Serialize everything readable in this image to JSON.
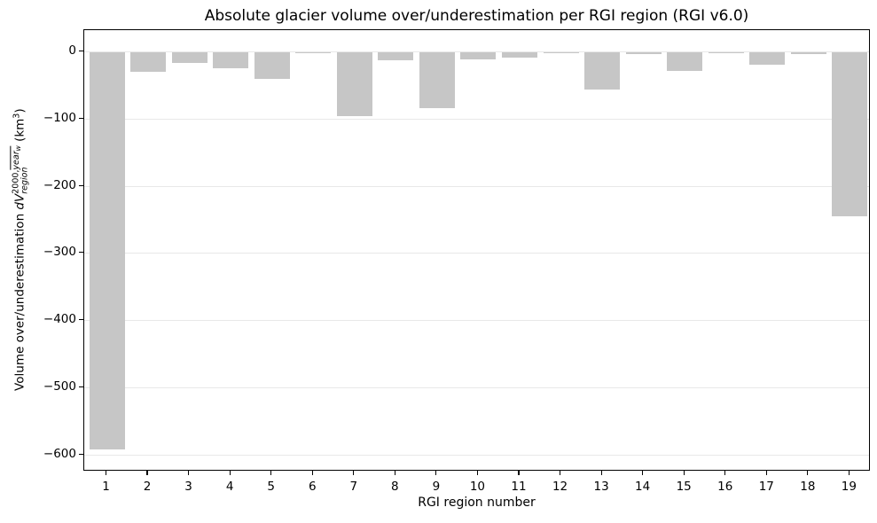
{
  "chart_data": {
    "type": "bar",
    "title": "Absolute glacier volume over/underestimation per RGI region (RGI v6.0)",
    "xlabel": "RGI region number",
    "ylabel_plain": "Volume over/underestimation dV^(2000,year_w)_(region) (km3)",
    "ylabel_parts": {
      "prefix": "Volume over/underestimation ",
      "var": "dV",
      "sup_left": "2000,",
      "sup_overline": "year",
      "sup_sub": "w",
      "sub": "region",
      "suffix_open": " (km",
      "suffix_sup": "3",
      "suffix_close": ")"
    },
    "categories": [
      1,
      2,
      3,
      4,
      5,
      6,
      7,
      8,
      9,
      10,
      11,
      12,
      13,
      14,
      15,
      16,
      17,
      18,
      19
    ],
    "values": [
      -592,
      -30,
      -17,
      -25,
      -40,
      -0.5,
      -96,
      -12,
      -84,
      -11,
      -9,
      -2,
      -56,
      -3.5,
      -29,
      -2.5,
      -19,
      -3.5,
      -245
    ],
    "yticks": [
      {
        "value": 0,
        "label": "0"
      },
      {
        "value": -100,
        "label": "−100"
      },
      {
        "value": -200,
        "label": "−200"
      },
      {
        "value": -300,
        "label": "−300"
      },
      {
        "value": -400,
        "label": "−400"
      },
      {
        "value": -500,
        "label": "−500"
      },
      {
        "value": -600,
        "label": "−600"
      }
    ],
    "ylim": [
      -627,
      33
    ],
    "grid": true,
    "legend": "none",
    "bar_color": "#c6c6c6",
    "grid_color": "#e8e8e8",
    "axis_color": "#000000",
    "background_color": "#ffffff"
  }
}
